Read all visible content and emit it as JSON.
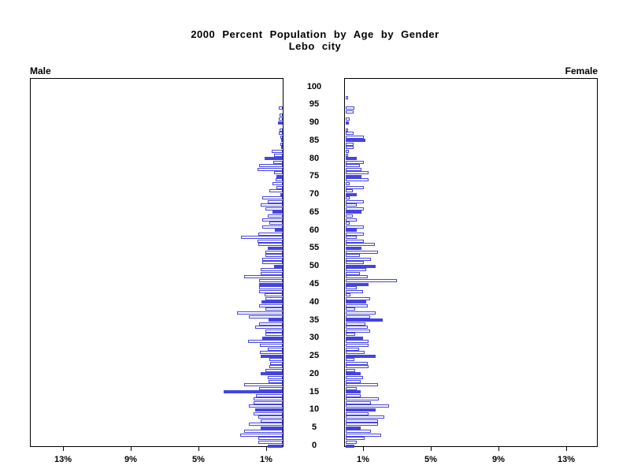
{
  "title": {
    "line1": "2000 Percent Population by Age by Gender",
    "line2": "Lebo city"
  },
  "panels": {
    "male_label": "Male",
    "female_label": "Female"
  },
  "chart_data": {
    "type": "bar",
    "variant": "population-pyramid",
    "title": "2000 Percent Population by Age by Gender",
    "subtitle": "Lebo city",
    "legend": "none",
    "grid": "off",
    "x_axis": {
      "unit": "%",
      "tick_percents": [
        1,
        5,
        9,
        13
      ],
      "tick_labels": [
        "1%",
        "5%",
        "9%",
        "13%"
      ],
      "max_percent": 15,
      "left_panel_direction": "right-to-left",
      "right_panel_direction": "left-to-right"
    },
    "age_axis": {
      "min": 0,
      "max": 100,
      "label_step": 5,
      "bar_step": 1,
      "labels": [
        "0",
        "5",
        "10",
        "15",
        "20",
        "25",
        "30",
        "35",
        "40",
        "45",
        "50",
        "55",
        "60",
        "65",
        "70",
        "75",
        "80",
        "85",
        "90",
        "95",
        "100"
      ]
    },
    "highlight_rule": "single-year bars; ages that are multiples of 5 are solid-filled, all other ages are hollow outline bars",
    "colors": {
      "bar": "#4444e0",
      "panel_border": "#000000",
      "background": "#ffffff",
      "text": "#000000"
    },
    "series": [
      {
        "name": "Male",
        "side": "left",
        "ages_0_to_100_percent": [
          0.9,
          1.45,
          1.45,
          2.5,
          2.3,
          1.3,
          2.0,
          1.3,
          1.45,
          1.7,
          1.65,
          2.0,
          1.7,
          1.7,
          1.6,
          3.5,
          1.4,
          2.3,
          0.85,
          0.9,
          1.3,
          1.0,
          0.8,
          0.75,
          0.8,
          1.3,
          1.35,
          0.9,
          1.35,
          2.05,
          1.2,
          1.0,
          1.0,
          1.65,
          1.4,
          0.85,
          2.0,
          2.7,
          1.0,
          1.4,
          1.25,
          1.0,
          1.05,
          1.4,
          1.4,
          1.4,
          1.4,
          2.3,
          1.3,
          1.3,
          0.5,
          1.2,
          1.2,
          1.0,
          1.0,
          0.9,
          1.43,
          1.47,
          2.45,
          1.43,
          0.45,
          1.2,
          0.8,
          1.2,
          0.9,
          0.6,
          1.0,
          1.3,
          0.9,
          1.2,
          0.15,
          0.8,
          0.35,
          0.6,
          0.4,
          0.35,
          0.5,
          1.5,
          1.4,
          0.55,
          1.05,
          0.5,
          0.65,
          0.1,
          0.15,
          0.1,
          0.12,
          0.25,
          0.2,
          0,
          0.3,
          0.25,
          0.2,
          0,
          0.25,
          0,
          0,
          0,
          0,
          0,
          0
        ]
      },
      {
        "name": "Female",
        "side": "right",
        "ages_0_to_100_percent": [
          0.5,
          0.67,
          1.1,
          2.1,
          1.5,
          0.9,
          1.9,
          1.9,
          2.3,
          1.33,
          1.75,
          2.55,
          1.5,
          1.95,
          0.9,
          0.88,
          0.67,
          1.9,
          0.88,
          1.0,
          0.88,
          0.55,
          1.33,
          1.3,
          0.5,
          1.75,
          1.1,
          0.8,
          1.33,
          1.33,
          1.0,
          0.55,
          1.45,
          1.3,
          1.15,
          2.2,
          1.45,
          1.75,
          0.55,
          1.3,
          1.2,
          1.45,
          0.3,
          1.0,
          0.67,
          1.35,
          3.0,
          1.3,
          0.85,
          1.2,
          1.75,
          1.07,
          1.5,
          0.85,
          1.9,
          0.94,
          1.7,
          1.07,
          0.67,
          1.07,
          0.67,
          1.07,
          0.23,
          0.67,
          0.4,
          0.94,
          1.07,
          0.67,
          1.07,
          0.23,
          0.67,
          0.4,
          1.07,
          0.23,
          1.33,
          0.94,
          1.33,
          0.94,
          0.85,
          1.07,
          0.67,
          0.15,
          0.2,
          0.47,
          0.47,
          1.15,
          1.07,
          0.45,
          0.15,
          0,
          0.2,
          0.25,
          0,
          0.47,
          0.5,
          0,
          0,
          0.15,
          0,
          0,
          0
        ]
      }
    ]
  }
}
